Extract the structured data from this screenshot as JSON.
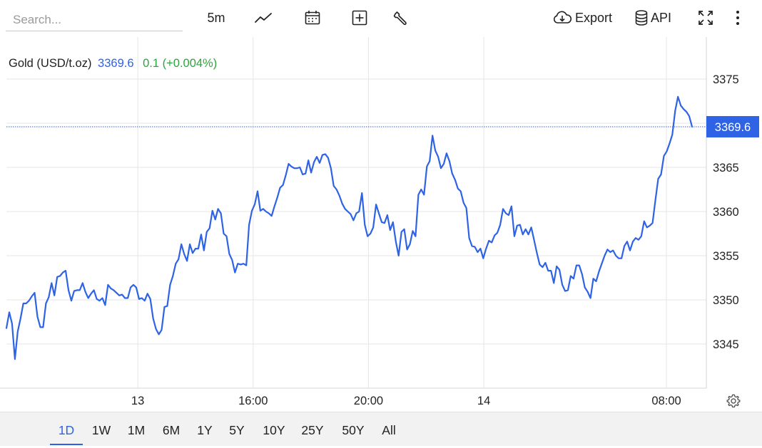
{
  "search": {
    "placeholder": "Search..."
  },
  "toolbar": {
    "interval": "5m",
    "export_label": "Export",
    "api_label": "API"
  },
  "legend": {
    "symbol": "Gold (USD/t.oz)",
    "price": "3369.6",
    "change": "0.1 (+0.004%)"
  },
  "ranges": [
    "1D",
    "1W",
    "1M",
    "6M",
    "1Y",
    "5Y",
    "10Y",
    "25Y",
    "50Y",
    "All"
  ],
  "active_range": "1D",
  "colors": {
    "line": "#2e63e6",
    "change_positive": "#2aa63a",
    "grid": "#e6e6e6"
  },
  "chart_data": {
    "type": "line",
    "title": "",
    "xlabel": "",
    "ylabel": "",
    "y_ticks": [
      3345,
      3350,
      3355,
      3360,
      3365,
      3370,
      3375
    ],
    "y_tick_labels": [
      "3345",
      "3350",
      "3355",
      "3360",
      "3365",
      "3375"
    ],
    "ylim": [
      3340.2,
      3377.3
    ],
    "x_tick_labels": [
      "13",
      "16:00",
      "20:00",
      "14",
      "08:00"
    ],
    "x_ticks": [
      41,
      77,
      113,
      149,
      206
    ],
    "xlim": [
      0,
      214
    ],
    "grid": true,
    "last_price": 3369.6,
    "last_price_label": "3369.6",
    "series": [
      {
        "values": [
          3346.8,
          3348.6,
          3347.3,
          3343.3,
          3346.4,
          3347.9,
          3349.6,
          3349.6,
          3349.9,
          3350.4,
          3350.8,
          3348.1,
          3346.9,
          3346.9,
          3349.6,
          3350.3,
          3351.9,
          3350.5,
          3352.6,
          3352.7,
          3353.1,
          3353.3,
          3351.1,
          3349.9,
          3351.0,
          3351.1,
          3351.1,
          3351.9,
          3350.9,
          3350.2,
          3350.7,
          3351.1,
          3350.1,
          3349.9,
          3350.2,
          3349.4,
          3351.7,
          3351.3,
          3351.1,
          3350.8,
          3350.5,
          3350.6,
          3350.2,
          3350.2,
          3351.4,
          3351.7,
          3351.4,
          3350.1,
          3350.2,
          3349.9,
          3350.7,
          3350.1,
          3347.9,
          3346.7,
          3346.1,
          3346.6,
          3349.2,
          3349.3,
          3351.7,
          3352.7,
          3354.1,
          3354.6,
          3356.3,
          3355.2,
          3354.4,
          3356.3,
          3355.3,
          3355.8,
          3355.8,
          3357.4,
          3355.6,
          3357.7,
          3358.1,
          3360.1,
          3359.1,
          3360.3,
          3359.8,
          3357.5,
          3357.2,
          3355.2,
          3354.5,
          3353.1,
          3354.1,
          3354.0,
          3354.1,
          3353.9,
          3358.5,
          3360.1,
          3360.8,
          3362.3,
          3360.1,
          3360.3,
          3360.0,
          3359.8,
          3359.5,
          3360.6,
          3361.6,
          3362.7,
          3363.0,
          3364.1,
          3365.4,
          3365.1,
          3364.9,
          3364.9,
          3365.0,
          3364.2,
          3364.3,
          3365.8,
          3364.4,
          3365.6,
          3366.2,
          3365.5,
          3366.4,
          3366.5,
          3366.1,
          3364.9,
          3362.9,
          3362.5,
          3361.8,
          3360.9,
          3360.3,
          3360.0,
          3359.7,
          3359.0,
          3359.8,
          3360.0,
          3362.1,
          3358.5,
          3357.2,
          3357.5,
          3358.2,
          3360.8,
          3359.8,
          3358.8,
          3358.7,
          3359.6,
          3357.9,
          3358.8,
          3356.6,
          3355.0,
          3357.7,
          3358.0,
          3355.7,
          3356.3,
          3357.8,
          3357.2,
          3361.9,
          3362.5,
          3361.9,
          3365.1,
          3365.7,
          3368.6,
          3366.9,
          3366.2,
          3364.9,
          3365.4,
          3366.6,
          3365.7,
          3364.3,
          3363.6,
          3362.6,
          3362.3,
          3361.0,
          3360.4,
          3357.0,
          3356.1,
          3356.0,
          3355.4,
          3355.8,
          3354.7,
          3355.8,
          3356.7,
          3356.5,
          3357.3,
          3357.6,
          3358.5,
          3360.3,
          3359.8,
          3359.6,
          3360.6,
          3357.2,
          3358.4,
          3358.5,
          3357.4,
          3358.0,
          3357.4,
          3358.2,
          3356.8,
          3355.3,
          3354.0,
          3353.7,
          3354.2,
          3353.3,
          3353.3,
          3351.9,
          3353.8,
          3353.4,
          3351.7,
          3351.0,
          3351.1,
          3352.7,
          3352.4,
          3353.9,
          3353.9,
          3352.9,
          3351.4,
          3350.9,
          3350.2,
          3352.4,
          3352.1,
          3353.2,
          3354.1,
          3355.0,
          3355.7,
          3355.4,
          3355.6,
          3355.0,
          3354.7,
          3354.7,
          3356.1,
          3356.6,
          3355.6,
          3356.6,
          3357.0,
          3356.8,
          3357.2,
          3358.9,
          3358.2,
          3358.4,
          3358.7,
          3361.3,
          3363.7,
          3364.2,
          3366.3,
          3366.8,
          3367.7,
          3368.7,
          3371.4,
          3373.0,
          3372.0,
          3371.6,
          3371.3,
          3370.8,
          3369.6
        ]
      }
    ]
  }
}
